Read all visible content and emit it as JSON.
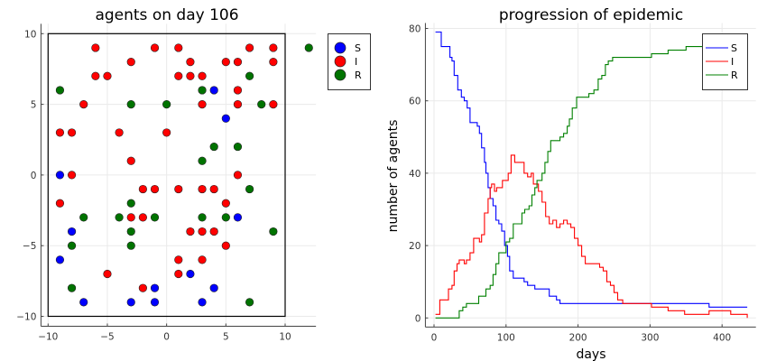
{
  "chart_data": [
    {
      "type": "scatter",
      "title": "agents on day 106",
      "xlabel": "",
      "ylabel": "",
      "xlim": [
        -10.6,
        12.6
      ],
      "ylim": [
        -10.7,
        10.7
      ],
      "xticks": [
        -10,
        -5,
        0,
        5,
        10
      ],
      "yticks": [
        -10,
        -5,
        0,
        5,
        10
      ],
      "grid": true,
      "box": {
        "x": [
          -10,
          10
        ],
        "y": [
          -10,
          10
        ]
      },
      "legend_position": "outer-topright",
      "series": [
        {
          "name": "S",
          "color": "#0000ff",
          "points": [
            [
              4,
              6
            ],
            [
              5,
              4
            ],
            [
              -9,
              0
            ],
            [
              6,
              -3
            ],
            [
              -8,
              -4
            ],
            [
              -9,
              -6
            ],
            [
              2,
              -7
            ],
            [
              -1,
              -8
            ],
            [
              4,
              -8
            ],
            [
              -7,
              -9
            ],
            [
              -3,
              -9
            ],
            [
              -1,
              -9
            ],
            [
              3,
              -9
            ]
          ]
        },
        {
          "name": "I",
          "color": "#ff0000",
          "points": [
            [
              -6,
              9
            ],
            [
              -1,
              9
            ],
            [
              1,
              9
            ],
            [
              7,
              9
            ],
            [
              9,
              9
            ],
            [
              -3,
              8
            ],
            [
              2,
              8
            ],
            [
              5,
              8
            ],
            [
              6,
              8
            ],
            [
              9,
              8
            ],
            [
              -6,
              7
            ],
            [
              -5,
              7
            ],
            [
              1,
              7
            ],
            [
              2,
              7
            ],
            [
              3,
              7
            ],
            [
              6,
              6
            ],
            [
              -7,
              5
            ],
            [
              3,
              5
            ],
            [
              6,
              5
            ],
            [
              9,
              5
            ],
            [
              -9,
              3
            ],
            [
              -8,
              3
            ],
            [
              -4,
              3
            ],
            [
              0,
              3
            ],
            [
              -3,
              1
            ],
            [
              -8,
              0
            ],
            [
              6,
              0
            ],
            [
              -2,
              -1
            ],
            [
              -1,
              -1
            ],
            [
              1,
              -1
            ],
            [
              3,
              -1
            ],
            [
              4,
              -1
            ],
            [
              -9,
              -2
            ],
            [
              5,
              -2
            ],
            [
              -3,
              -3
            ],
            [
              -2,
              -3
            ],
            [
              2,
              -4
            ],
            [
              3,
              -4
            ],
            [
              4,
              -4
            ],
            [
              5,
              -5
            ],
            [
              1,
              -6
            ],
            [
              3,
              -6
            ],
            [
              -5,
              -7
            ],
            [
              1,
              -7
            ],
            [
              -2,
              -8
            ]
          ]
        },
        {
          "name": "R",
          "color": "#007300",
          "points": [
            [
              12,
              9
            ],
            [
              7,
              7
            ],
            [
              -9,
              6
            ],
            [
              3,
              6
            ],
            [
              -3,
              5
            ],
            [
              0,
              5
            ],
            [
              8,
              5
            ],
            [
              4,
              2
            ],
            [
              6,
              2
            ],
            [
              3,
              1
            ],
            [
              7,
              -1
            ],
            [
              -3,
              -2
            ],
            [
              -7,
              -3
            ],
            [
              -4,
              -3
            ],
            [
              -1,
              -3
            ],
            [
              3,
              -3
            ],
            [
              5,
              -3
            ],
            [
              -3,
              -4
            ],
            [
              9,
              -4
            ],
            [
              -8,
              -5
            ],
            [
              -3,
              -5
            ],
            [
              -8,
              -8
            ],
            [
              7,
              -9
            ]
          ]
        }
      ]
    },
    {
      "type": "line",
      "title": "progression of epidemic",
      "xlabel": "days",
      "ylabel": "number of agents",
      "xlim": [
        -12,
        447
      ],
      "ylim": [
        -2.5,
        81.5
      ],
      "xticks": [
        0,
        100,
        200,
        300,
        400
      ],
      "yticks": [
        0,
        20,
        40,
        60,
        80
      ],
      "grid": true,
      "legend_position": "topright",
      "series": [
        {
          "name": "S",
          "color": "#0000ff",
          "points": [
            [
              2,
              79
            ],
            [
              7,
              79
            ],
            [
              10,
              75
            ],
            [
              20,
              75
            ],
            [
              22,
              72
            ],
            [
              25,
              71
            ],
            [
              28,
              67
            ],
            [
              33,
              63
            ],
            [
              38,
              61
            ],
            [
              42,
              60
            ],
            [
              46,
              58
            ],
            [
              50,
              54
            ],
            [
              58,
              54
            ],
            [
              60,
              53
            ],
            [
              63,
              51
            ],
            [
              66,
              47
            ],
            [
              70,
              43
            ],
            [
              72,
              40
            ],
            [
              75,
              36
            ],
            [
              78,
              33
            ],
            [
              82,
              31
            ],
            [
              86,
              27
            ],
            [
              90,
              26
            ],
            [
              94,
              24
            ],
            [
              98,
              20
            ],
            [
              102,
              17
            ],
            [
              105,
              13
            ],
            [
              110,
              11
            ],
            [
              120,
              11
            ],
            [
              125,
              10
            ],
            [
              130,
              9
            ],
            [
              140,
              8
            ],
            [
              155,
              8
            ],
            [
              160,
              6
            ],
            [
              170,
              5
            ],
            [
              175,
              4
            ],
            [
              380,
              4
            ],
            [
              382,
              3
            ],
            [
              435,
              3
            ]
          ]
        },
        {
          "name": "I",
          "color": "#ff0000",
          "points": [
            [
              2,
              1
            ],
            [
              5,
              1
            ],
            [
              8,
              5
            ],
            [
              18,
              5
            ],
            [
              20,
              8
            ],
            [
              25,
              9
            ],
            [
              28,
              13
            ],
            [
              32,
              15
            ],
            [
              35,
              16
            ],
            [
              40,
              16
            ],
            [
              42,
              15
            ],
            [
              45,
              16
            ],
            [
              50,
              18
            ],
            [
              55,
              22
            ],
            [
              62,
              22
            ],
            [
              63,
              21
            ],
            [
              66,
              23
            ],
            [
              70,
              29
            ],
            [
              75,
              33
            ],
            [
              78,
              36
            ],
            [
              80,
              37
            ],
            [
              84,
              35
            ],
            [
              87,
              36
            ],
            [
              90,
              36
            ],
            [
              95,
              38
            ],
            [
              100,
              38
            ],
            [
              103,
              40
            ],
            [
              107,
              45
            ],
            [
              112,
              43
            ],
            [
              120,
              43
            ],
            [
              125,
              40
            ],
            [
              130,
              39
            ],
            [
              135,
              40
            ],
            [
              138,
              37
            ],
            [
              145,
              35
            ],
            [
              150,
              32
            ],
            [
              155,
              28
            ],
            [
              160,
              26
            ],
            [
              165,
              27
            ],
            [
              170,
              25
            ],
            [
              175,
              26
            ],
            [
              180,
              27
            ],
            [
              185,
              26
            ],
            [
              190,
              25
            ],
            [
              195,
              22
            ],
            [
              200,
              20
            ],
            [
              205,
              17
            ],
            [
              210,
              15
            ],
            [
              225,
              15
            ],
            [
              230,
              14
            ],
            [
              235,
              13
            ],
            [
              240,
              10
            ],
            [
              245,
              9
            ],
            [
              250,
              7
            ],
            [
              255,
              5
            ],
            [
              262,
              4
            ],
            [
              300,
              4
            ],
            [
              302,
              3
            ],
            [
              322,
              3
            ],
            [
              325,
              2
            ],
            [
              345,
              2
            ],
            [
              348,
              1
            ],
            [
              380,
              1
            ],
            [
              382,
              2
            ],
            [
              410,
              2
            ],
            [
              412,
              1
            ],
            [
              433,
              1
            ],
            [
              435,
              0
            ]
          ]
        },
        {
          "name": "R",
          "color": "#008000",
          "points": [
            [
              2,
              0
            ],
            [
              32,
              0
            ],
            [
              35,
              2
            ],
            [
              40,
              3
            ],
            [
              45,
              4
            ],
            [
              60,
              4
            ],
            [
              62,
              6
            ],
            [
              68,
              6
            ],
            [
              72,
              8
            ],
            [
              78,
              9
            ],
            [
              82,
              12
            ],
            [
              86,
              15
            ],
            [
              90,
              18
            ],
            [
              97,
              18
            ],
            [
              100,
              21
            ],
            [
              105,
              22
            ],
            [
              110,
              26
            ],
            [
              118,
              26
            ],
            [
              122,
              29
            ],
            [
              126,
              30
            ],
            [
              132,
              31
            ],
            [
              136,
              34
            ],
            [
              140,
              36
            ],
            [
              143,
              38
            ],
            [
              150,
              40
            ],
            [
              154,
              43
            ],
            [
              158,
              46
            ],
            [
              162,
              49
            ],
            [
              172,
              49
            ],
            [
              175,
              50
            ],
            [
              180,
              51
            ],
            [
              185,
              53
            ],
            [
              188,
              55
            ],
            [
              192,
              58
            ],
            [
              198,
              61
            ],
            [
              212,
              61
            ],
            [
              215,
              62
            ],
            [
              222,
              63
            ],
            [
              228,
              66
            ],
            [
              233,
              67
            ],
            [
              238,
              70
            ],
            [
              242,
              71
            ],
            [
              248,
              72
            ],
            [
              300,
              72
            ],
            [
              302,
              73
            ],
            [
              322,
              73
            ],
            [
              325,
              74
            ],
            [
              347,
              74
            ],
            [
              350,
              75
            ],
            [
              410,
              75
            ],
            [
              430,
              76
            ],
            [
              435,
              77
            ]
          ]
        }
      ]
    }
  ],
  "left_chart": {
    "title": "agents on day 106",
    "legend": [
      "S",
      "I",
      "R"
    ]
  },
  "right_chart": {
    "title": "progression of epidemic",
    "xlabel": "days",
    "ylabel": "number of agents",
    "legend": [
      "S",
      "I",
      "R"
    ]
  }
}
